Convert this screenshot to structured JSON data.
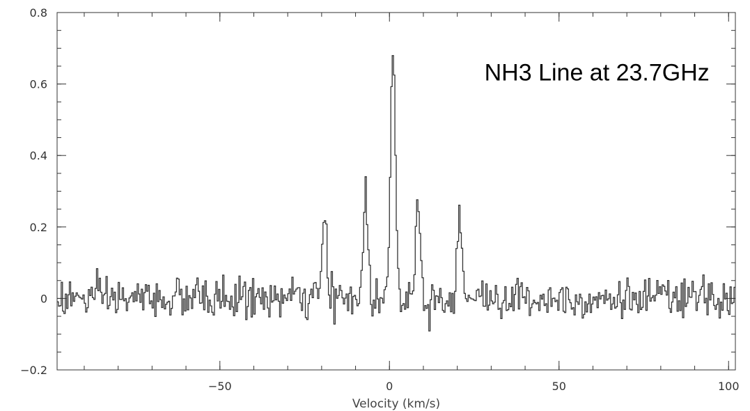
{
  "chart_data": {
    "type": "line",
    "title": "",
    "xlabel": "Velocity (km/s)",
    "ylabel": "",
    "xlim": [
      -98,
      102
    ],
    "ylim": [
      -0.2,
      0.8
    ],
    "x_major_ticks": [
      -50,
      0,
      50,
      100
    ],
    "x_minor_step": 10,
    "y_major_ticks": [
      -0.2,
      0,
      0.2,
      0.4,
      0.6,
      0.8
    ],
    "y_minor_step": 0.05,
    "x_tick_labels": [
      "−50",
      "0",
      "50",
      "100"
    ],
    "y_tick_labels": [
      "−0.2",
      "0",
      "0.2",
      "0.4",
      "0.6",
      "0.8"
    ],
    "grid": false,
    "legend": "none",
    "line_style": "histogram-step",
    "color": "#333333",
    "annotation": {
      "text": "NH3 Line at 23.7GHz",
      "x": 28,
      "y": 0.61
    },
    "series": [
      {
        "channel_width": 0.4,
        "noise_rms": 0.028,
        "components": [
          {
            "center": -19.3,
            "peak": 0.23,
            "fwhm": 1.5
          },
          {
            "center": -7.2,
            "peak": 0.29,
            "fwhm": 1.6
          },
          {
            "center": 0.9,
            "peak": 0.67,
            "fwhm": 1.8
          },
          {
            "center": 8.1,
            "peak": 0.28,
            "fwhm": 1.6
          },
          {
            "center": 20.5,
            "peak": 0.27,
            "fwhm": 1.5
          }
        ]
      }
    ]
  }
}
